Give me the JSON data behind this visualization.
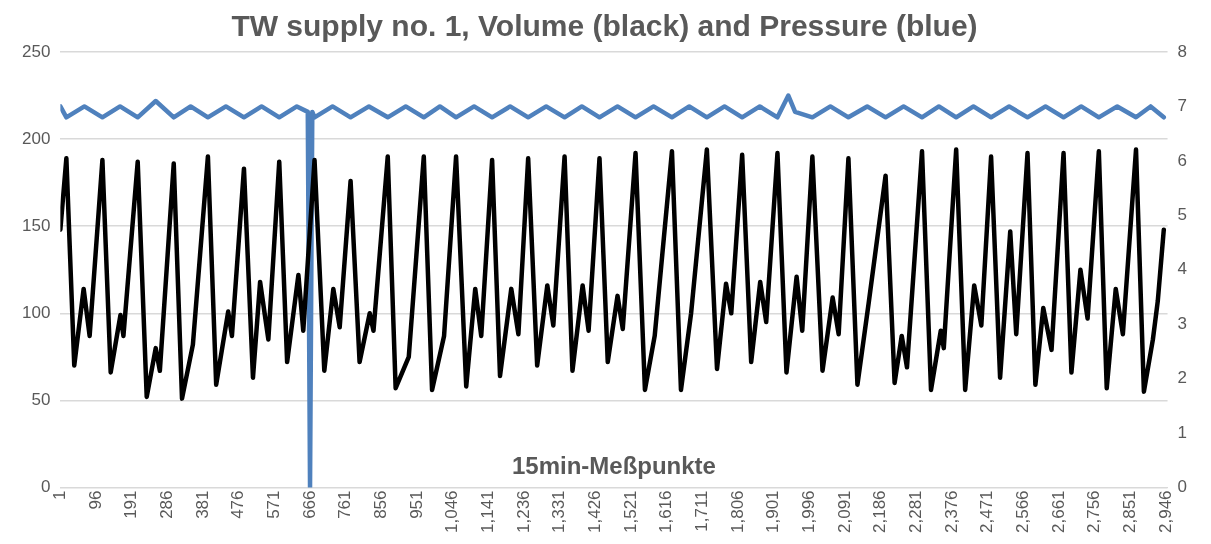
{
  "chart_data": {
    "type": "line",
    "title": "TW supply no. 1, Volume (black) and Pressure (blue)",
    "xlabel": "15min-Meßpunkte",
    "xlim": [
      1,
      2950
    ],
    "xticks": [
      1,
      96,
      191,
      286,
      381,
      476,
      571,
      666,
      761,
      856,
      951,
      {
        "value": 1046,
        "label": "1,046"
      },
      {
        "value": 1141,
        "label": "1,141"
      },
      {
        "value": 1236,
        "label": "1,236"
      },
      {
        "value": 1331,
        "label": "1,331"
      },
      {
        "value": 1426,
        "label": "1,426"
      },
      {
        "value": 1521,
        "label": "1,521"
      },
      {
        "value": 1616,
        "label": "1,616"
      },
      {
        "value": 1711,
        "label": "1,711"
      },
      {
        "value": 1806,
        "label": "1,806"
      },
      {
        "value": 1901,
        "label": "1,901"
      },
      {
        "value": 1996,
        "label": "1,996"
      },
      {
        "value": 2091,
        "label": "2,091"
      },
      {
        "value": 2186,
        "label": "2,186"
      },
      {
        "value": 2281,
        "label": "2,281"
      },
      {
        "value": 2376,
        "label": "2,376"
      },
      {
        "value": 2471,
        "label": "2,471"
      },
      {
        "value": 2566,
        "label": "2,566"
      },
      {
        "value": 2661,
        "label": "2,661"
      },
      {
        "value": 2756,
        "label": "2,756"
      },
      {
        "value": 2851,
        "label": "2,851"
      },
      {
        "value": 2946,
        "label": "2,946"
      }
    ],
    "ylim": [
      0,
      250
    ],
    "yticks": [
      0,
      50,
      100,
      150,
      200,
      250
    ],
    "y2lim": [
      0,
      8
    ],
    "y2ticks": [
      0,
      1,
      2,
      3,
      4,
      5,
      6,
      7,
      8
    ],
    "grid": "y",
    "legend": false,
    "marker": "none",
    "line_style": "solid",
    "series": [
      {
        "color": "#000000",
        "x": [
          1,
          17,
          38,
          63,
          79,
          113,
          135,
          161,
          169,
          207,
          231,
          255,
          266,
          303,
          325,
          354,
          394,
          416,
          448,
          458,
          490,
          514,
          533,
          555,
          584,
          605,
          635,
          648,
          678,
          704,
          728,
          745,
          774,
          798,
          825,
          835,
          873,
          894,
          929,
          969,
          991,
          1023,
          1055,
          1082,
          1106,
          1122,
          1151,
          1172,
          1202,
          1221,
          1247,
          1271,
          1298,
          1314,
          1344,
          1365,
          1392,
          1408,
          1437,
          1459,
          1485,
          1499,
          1533,
          1558,
          1584,
          1630,
          1654,
          1681,
          1723,
          1750,
          1774,
          1788,
          1817,
          1841,
          1865,
          1881,
          1911,
          1935,
          1962,
          1977,
          2004,
          2031,
          2058,
          2074,
          2100,
          2124,
          2154,
          2199,
          2223,
          2242,
          2256,
          2296,
          2320,
          2346,
          2354,
          2387,
          2411,
          2435,
          2454,
          2480,
          2504,
          2531,
          2547,
          2577,
          2598,
          2619,
          2641,
          2673,
          2694,
          2718,
          2737,
          2767,
          2788,
          2812,
          2831,
          2866,
          2887,
          2911,
          2924,
          2940
        ],
        "values": [
          148,
          189,
          70,
          114,
          87,
          188,
          66,
          99,
          87,
          187,
          52,
          80,
          67,
          186,
          51,
          82,
          190,
          59,
          101,
          87,
          183,
          63,
          118,
          85,
          187,
          72,
          122,
          90,
          188,
          67,
          114,
          92,
          176,
          72,
          100,
          90,
          190,
          57,
          75,
          190,
          56,
          87,
          190,
          58,
          114,
          87,
          188,
          64,
          114,
          88,
          189,
          70,
          116,
          93,
          190,
          67,
          116,
          90,
          189,
          72,
          110,
          91,
          192,
          56,
          87,
          193,
          56,
          100,
          194,
          68,
          117,
          100,
          191,
          72,
          118,
          95,
          192,
          66,
          121,
          90,
          190,
          67,
          109,
          88,
          189,
          59,
          106,
          179,
          60,
          87,
          69,
          193,
          56,
          90,
          80,
          194,
          56,
          116,
          93,
          190,
          63,
          147,
          88,
          192,
          59,
          103,
          79,
          192,
          66,
          125,
          97,
          193,
          57,
          114,
          88,
          194,
          55,
          85,
          107,
          148
        ]
      },
      {
        "color": "#4f81bd",
        "axis": "y2",
        "x": [
          1,
          17,
          65,
          113,
          160,
          207,
          255,
          303,
          348,
          394,
          442,
          490,
          537,
          584,
          631,
          660,
          666,
          672,
          678,
          726,
          774,
          823,
          873,
          921,
          969,
          1012,
          1055,
          1103,
          1151,
          1199,
          1247,
          1295,
          1344,
          1390,
          1437,
          1485,
          1533,
          1581,
          1630,
          1676,
          1723,
          1770,
          1817,
          1864,
          1911,
          1940,
          1958,
          2004,
          2052,
          2100,
          2150,
          2199,
          2247,
          2296,
          2341,
          2387,
          2433,
          2480,
          2528,
          2577,
          2625,
          2673,
          2720,
          2767,
          2816,
          2866,
          2905,
          2940
        ],
        "values": [
          7.0,
          6.8,
          7.0,
          6.8,
          7.0,
          6.8,
          7.1,
          6.8,
          7.0,
          6.8,
          7.0,
          6.8,
          7.0,
          6.8,
          7.0,
          6.9,
          0,
          6.9,
          6.8,
          7.0,
          6.8,
          7.0,
          6.8,
          7.0,
          6.8,
          7.0,
          6.8,
          7.0,
          6.8,
          7.0,
          6.8,
          7.0,
          6.8,
          7.0,
          6.8,
          7.0,
          6.8,
          7.0,
          6.8,
          7.0,
          6.8,
          7.0,
          6.8,
          7.0,
          6.8,
          7.2,
          6.9,
          6.8,
          7.0,
          6.8,
          7.0,
          6.8,
          7.0,
          6.8,
          7.0,
          6.8,
          7.0,
          6.8,
          7.0,
          6.8,
          7.0,
          6.8,
          7.0,
          6.8,
          7.0,
          6.8,
          7.0,
          6.8
        ]
      }
    ]
  }
}
